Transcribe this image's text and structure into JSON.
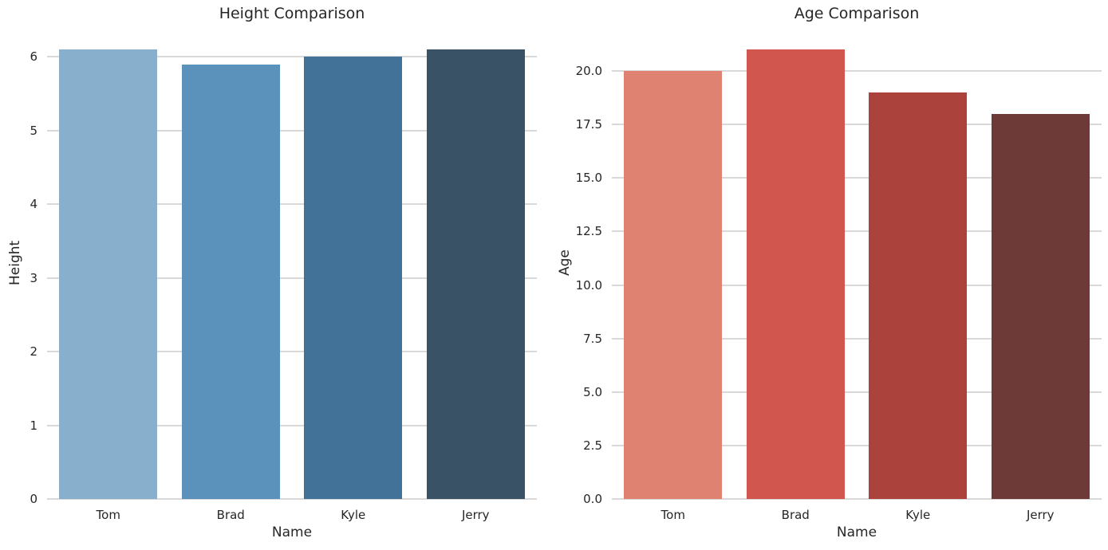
{
  "figure": {
    "background": "#ffffff",
    "text_color": "#262626",
    "grid_color": "#d9d9d9"
  },
  "chart_data": [
    {
      "type": "bar",
      "title": "Height Comparison",
      "xlabel": "Name",
      "ylabel": "Height",
      "categories": [
        "Tom",
        "Brad",
        "Kyle",
        "Jerry"
      ],
      "values": [
        6.1,
        5.9,
        6.0,
        6.1
      ],
      "bar_colors": [
        "#88b0cd",
        "#5b92bb",
        "#427297",
        "#3a5266"
      ],
      "ylim": [
        0,
        6.405
      ],
      "yticks": [
        0,
        1,
        2,
        3,
        4,
        5,
        6
      ],
      "ytick_labels": [
        "0",
        "1",
        "2",
        "3",
        "4",
        "5",
        "6"
      ],
      "grid": true,
      "legend": "none",
      "bar_width_fraction": 0.8
    },
    {
      "type": "bar",
      "title": "Age Comparison",
      "xlabel": "Name",
      "ylabel": "Age",
      "categories": [
        "Tom",
        "Brad",
        "Kyle",
        "Jerry"
      ],
      "values": [
        20,
        21,
        19,
        18
      ],
      "bar_colors": [
        "#e08271",
        "#d0564e",
        "#ab423c",
        "#6e3a37"
      ],
      "ylim": [
        0,
        22.05
      ],
      "yticks": [
        0,
        2.5,
        5,
        7.5,
        10,
        12.5,
        15,
        17.5,
        20
      ],
      "ytick_labels": [
        "0.0",
        "2.5",
        "5.0",
        "7.5",
        "10.0",
        "12.5",
        "15.0",
        "17.5",
        "20.0"
      ],
      "grid": true,
      "legend": "none",
      "bar_width_fraction": 0.8
    }
  ]
}
